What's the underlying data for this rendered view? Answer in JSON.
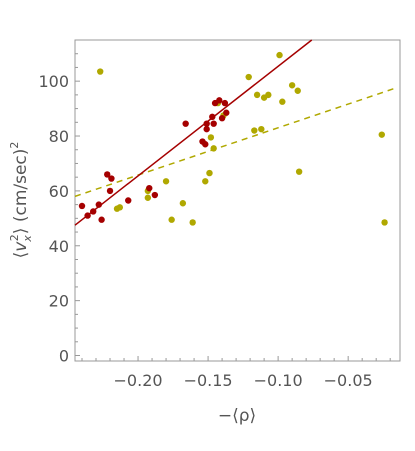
{
  "chart_data": {
    "type": "scatter",
    "title": "",
    "xlabel": "−⟨ρ⟩",
    "ylabel": "⟨v_x²⟩ (cm/sec)²",
    "ylabel_parts": {
      "open": "⟨",
      "var": "v",
      "sub": "x",
      "sup": "2",
      "close": "⟩ (cm/sec)",
      "unit_sup": "2"
    },
    "xlim": [
      -0.245,
      -0.013
    ],
    "ylim": [
      -2,
      115
    ],
    "x_ticks": [
      -0.2,
      -0.15,
      -0.1,
      -0.05
    ],
    "x_tick_labels": [
      "−0.20",
      "−0.15",
      "−0.10",
      "−0.05"
    ],
    "y_ticks": [
      0,
      20,
      40,
      60,
      80,
      100
    ],
    "y_tick_labels": [
      "0",
      "20",
      "40",
      "60",
      "80",
      "100"
    ],
    "grid": false,
    "frame_color": "#999999",
    "series": [
      {
        "color": "#b0a800",
        "marker": "circle",
        "points": [
          [
            -0.227,
            103.5
          ],
          [
            -0.215,
            53.5
          ],
          [
            -0.213,
            54
          ],
          [
            -0.193,
            57.5
          ],
          [
            -0.193,
            60
          ],
          [
            -0.18,
            63.5
          ],
          [
            -0.176,
            49.5
          ],
          [
            -0.168,
            55.5
          ],
          [
            -0.161,
            48.5
          ],
          [
            -0.152,
            63.5
          ],
          [
            -0.149,
            66.5
          ],
          [
            -0.148,
            79.5
          ],
          [
            -0.146,
            75.5
          ],
          [
            -0.143,
            92
          ],
          [
            -0.139,
            87.5
          ],
          [
            -0.121,
            101.5
          ],
          [
            -0.117,
            82
          ],
          [
            -0.115,
            95
          ],
          [
            -0.112,
            82.5
          ],
          [
            -0.11,
            94
          ],
          [
            -0.107,
            95
          ],
          [
            -0.099,
            109.5
          ],
          [
            -0.097,
            92.5
          ],
          [
            -0.09,
            98.5
          ],
          [
            -0.086,
            96.5
          ],
          [
            -0.085,
            67
          ],
          [
            -0.026,
            80.5
          ],
          [
            -0.024,
            48.5
          ]
        ]
      },
      {
        "color": "#a50000",
        "marker": "circle",
        "points": [
          [
            -0.24,
            54.5
          ],
          [
            -0.236,
            51
          ],
          [
            -0.232,
            52.5
          ],
          [
            -0.228,
            55
          ],
          [
            -0.226,
            49.5
          ],
          [
            -0.222,
            66
          ],
          [
            -0.22,
            60
          ],
          [
            -0.219,
            64.5
          ],
          [
            -0.207,
            56.5
          ],
          [
            -0.192,
            61
          ],
          [
            -0.188,
            58.5
          ],
          [
            -0.166,
            84.5
          ],
          [
            -0.154,
            78
          ],
          [
            -0.152,
            77
          ],
          [
            -0.151,
            82.5
          ],
          [
            -0.151,
            84.5
          ],
          [
            -0.147,
            87
          ],
          [
            -0.146,
            84.5
          ],
          [
            -0.145,
            92
          ],
          [
            -0.142,
            93
          ],
          [
            -0.14,
            86.5
          ],
          [
            -0.138,
            92
          ],
          [
            -0.137,
            88.5
          ]
        ]
      }
    ],
    "fit_lines": [
      {
        "color": "#b0a800",
        "style": "dashed",
        "x": [
          -0.245,
          -0.016
        ],
        "y": [
          58,
          97.5
        ]
      },
      {
        "color": "#a50000",
        "style": "solid",
        "x": [
          -0.245,
          -0.076
        ],
        "y": [
          47.5,
          115
        ]
      }
    ]
  }
}
